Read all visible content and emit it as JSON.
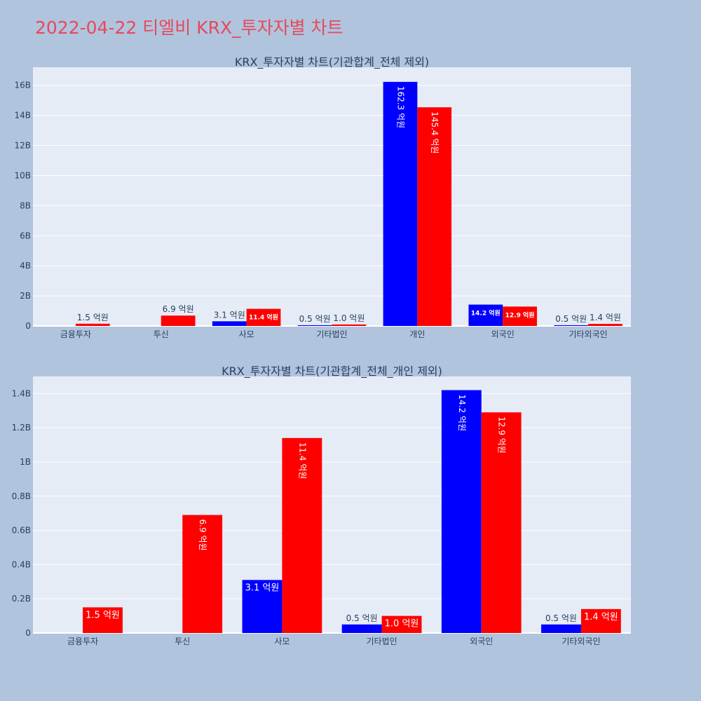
{
  "page": {
    "title": "2022-04-22 티엘비 KRX_투자자별 차트"
  },
  "colors": {
    "buy": "#0000ff",
    "sell": "#ff0000",
    "plot_bg": "#e5ecf6",
    "page_bg": "#b0c4de",
    "title": "#e8485a"
  },
  "chart_data": [
    {
      "type": "bar",
      "title": "KRX_투자자별 차트(기관합계_전체 제외)",
      "categories": [
        "금융투자",
        "투신",
        "사모",
        "기타법인",
        "개인",
        "외국인",
        "기타외국인"
      ],
      "series": [
        {
          "color": "#0000ff",
          "values": [
            0,
            0,
            0.31,
            0.05,
            16.23,
            1.42,
            0.05
          ],
          "labels": [
            "",
            "",
            "3.1 억원",
            "0.5 억원",
            "162.3 억원",
            "14.2 억원",
            "0.5 억원"
          ]
        },
        {
          "color": "#ff0000",
          "values": [
            0.15,
            0.69,
            1.14,
            0.1,
            14.54,
            1.29,
            0.14
          ],
          "labels": [
            "1.5 억원",
            "6.9 억원",
            "11.4 억원",
            "1.0 억원",
            "145.4 억원",
            "12.9 억원",
            "1.4 억원"
          ]
        }
      ],
      "ylim": [
        0,
        17.2
      ],
      "yticks": [
        0,
        2,
        4,
        6,
        8,
        10,
        12,
        14,
        16
      ],
      "ytick_labels": [
        "0",
        "2B",
        "4B",
        "6B",
        "8B",
        "10B",
        "12B",
        "14B",
        "16B"
      ],
      "grid": true
    },
    {
      "type": "bar",
      "title": "KRX_투자자별 차트(기관합계_전체_개인 제외)",
      "categories": [
        "금융투자",
        "투신",
        "사모",
        "기타법인",
        "외국인",
        "기타외국인"
      ],
      "series": [
        {
          "color": "#0000ff",
          "values": [
            0,
            0,
            0.31,
            0.05,
            1.42,
            0.05
          ],
          "labels": [
            "",
            "",
            "3.1 억원",
            "0.5 억원",
            "14.2 억원",
            "0.5 억원"
          ]
        },
        {
          "color": "#ff0000",
          "values": [
            0.15,
            0.69,
            1.14,
            0.1,
            1.29,
            0.14
          ],
          "labels": [
            "1.5 억원",
            "6.9 억원",
            "11.4 억원",
            "1.0 억원",
            "12.9 억원",
            "1.4 억원"
          ]
        }
      ],
      "ylim": [
        0,
        1.5
      ],
      "yticks": [
        0,
        0.2,
        0.4,
        0.6,
        0.8,
        1.0,
        1.2,
        1.4
      ],
      "ytick_labels": [
        "0",
        "0.2B",
        "0.4B",
        "0.6B",
        "0.8B",
        "1B",
        "1.2B",
        "1.4B"
      ],
      "grid": true
    }
  ]
}
